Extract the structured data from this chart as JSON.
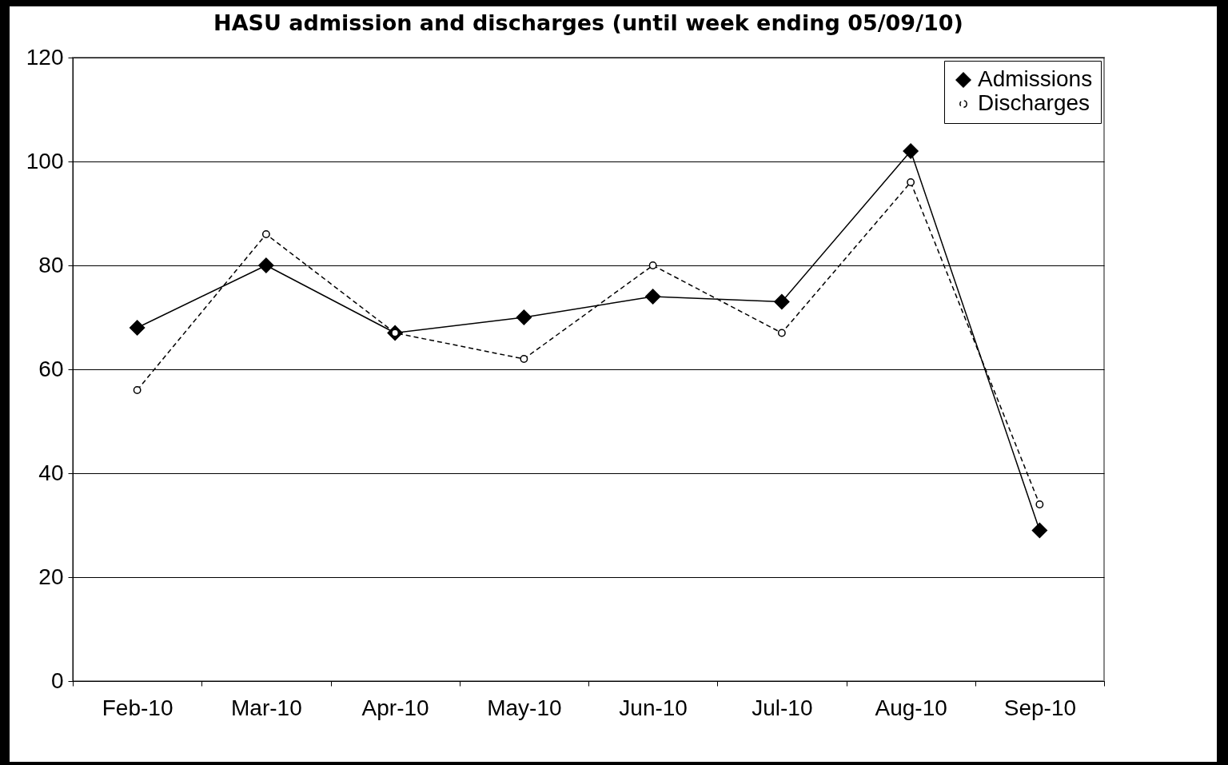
{
  "chart_data": {
    "type": "line",
    "title": "HASU admission and discharges (until week ending 05/09/10)",
    "categories": [
      "Feb-10",
      "Mar-10",
      "Apr-10",
      "May-10",
      "Jun-10",
      "Jul-10",
      "Aug-10",
      "Sep-10"
    ],
    "series": [
      {
        "name": "Admissions",
        "color": "#000000",
        "marker": "diamond",
        "line_style": "solid",
        "values": [
          68,
          80,
          67,
          70,
          74,
          73,
          102,
          29
        ]
      },
      {
        "name": "Discharges",
        "color": "#000000",
        "marker": "circle",
        "line_style": "dashed",
        "values": [
          56,
          86,
          67,
          62,
          80,
          67,
          96,
          34
        ]
      }
    ],
    "ylim": [
      0,
      120
    ],
    "yticks": [
      0,
      20,
      40,
      60,
      80,
      100,
      120
    ],
    "grid": "y",
    "legend": "top right"
  }
}
